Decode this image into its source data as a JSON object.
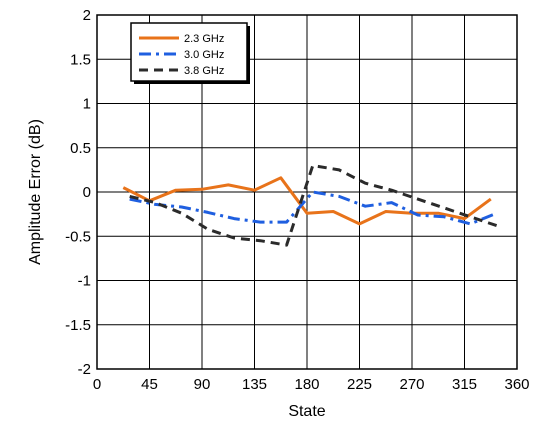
{
  "chart_data": {
    "type": "line",
    "xlabel": "State",
    "ylabel": "Amplitude Error (dB)",
    "xlim": [
      0,
      360
    ],
    "ylim": [
      -2,
      2
    ],
    "x_ticks": [
      0,
      45,
      90,
      135,
      180,
      225,
      270,
      315,
      360
    ],
    "y_ticks": [
      2,
      1.5,
      1,
      0.5,
      0,
      -0.5,
      -1,
      -1.5,
      -2
    ],
    "x_tick_labels": [
      "0",
      "45",
      "90",
      "135",
      "180",
      "225",
      "270",
      "315",
      "360"
    ],
    "y_tick_labels": [
      "2",
      "1.5",
      "1",
      "0.5",
      "0",
      "-0.5",
      "-1",
      "-1.5",
      "-2"
    ],
    "grid": true,
    "legend_position": "top-left",
    "series": [
      {
        "name": "2.3 GHz",
        "color": "#E8731A",
        "dash": "solid",
        "x": [
          22.5,
          45,
          67.5,
          90,
          112.5,
          135,
          157.5,
          180,
          202.5,
          225,
          247.5,
          270,
          292.5,
          315,
          337.5
        ],
        "values": [
          0.05,
          -0.1,
          0.02,
          0.03,
          0.08,
          0.02,
          0.16,
          -0.24,
          -0.22,
          -0.36,
          -0.22,
          -0.24,
          -0.24,
          -0.3,
          -0.08
        ]
      },
      {
        "name": "3.0 GHz",
        "color": "#1F5FE0",
        "dash": "dashdot",
        "x": [
          28,
          50,
          72.5,
          95,
          117.5,
          140,
          162.5,
          185,
          207.5,
          230,
          252.5,
          275,
          297.5,
          320,
          342.5
        ],
        "values": [
          -0.08,
          -0.14,
          -0.17,
          -0.23,
          -0.3,
          -0.34,
          -0.34,
          0.0,
          -0.05,
          -0.16,
          -0.12,
          -0.26,
          -0.28,
          -0.36,
          -0.24
        ]
      },
      {
        "name": "3.8 GHz",
        "color": "#2B2B2B",
        "dash": "dashed",
        "x": [
          28,
          50,
          72.5,
          95,
          117.5,
          140,
          162.5,
          185,
          207.5,
          230,
          252.5,
          275,
          297.5,
          320,
          342.5
        ],
        "values": [
          -0.05,
          -0.12,
          -0.24,
          -0.42,
          -0.52,
          -0.55,
          -0.6,
          0.3,
          0.25,
          0.1,
          0.02,
          -0.08,
          -0.18,
          -0.28,
          -0.38
        ]
      }
    ]
  }
}
